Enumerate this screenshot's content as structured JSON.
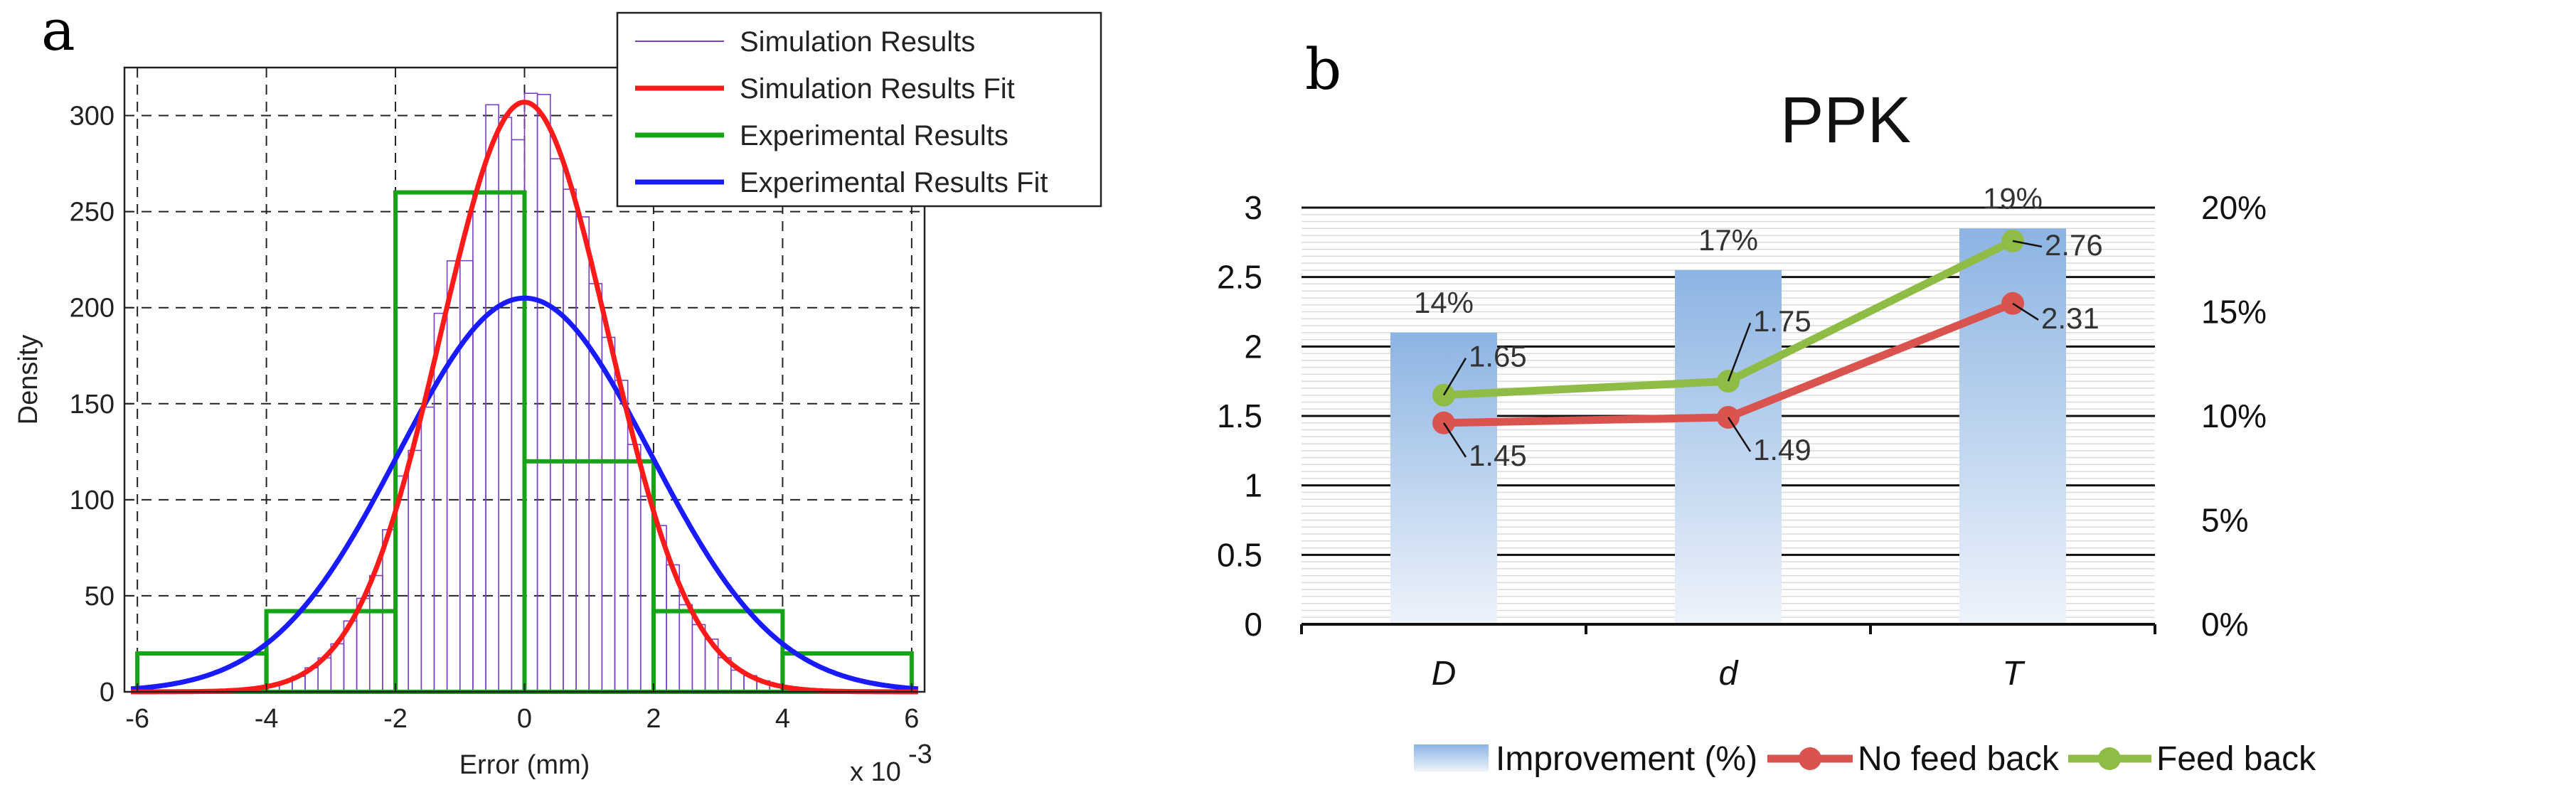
{
  "chart_data": [
    {
      "panel": "a",
      "type": "histogram",
      "xlabel": "Error (mm)",
      "ylabel": "Density",
      "x_multiplier": "x 10",
      "x_multiplier_exp": "-3",
      "xlim": [
        -6.2,
        6.2
      ],
      "ylim": [
        0,
        325
      ],
      "xticks": [
        -6,
        -4,
        -2,
        0,
        2,
        4,
        6
      ],
      "xtick_labels": [
        "-6",
        "-4",
        "-2",
        "0",
        "2",
        "4",
        "6"
      ],
      "yticks": [
        0,
        50,
        100,
        150,
        200,
        250,
        300
      ],
      "ytick_labels": [
        "0",
        "50",
        "100",
        "150",
        "200",
        "250",
        "300"
      ],
      "grid": "dashed",
      "legend": [
        "Simulation Results",
        "Simulation Results Fit",
        "Experimental Results",
        "Experimental Results Fit"
      ],
      "colors": {
        "sim": "#7b3fc4",
        "sim_fit": "#ff1a1a",
        "exp": "#17a317",
        "exp_fit": "#1a1aff"
      },
      "sim_fit": {
        "mean": 0.0,
        "sd": 1.3,
        "peak": 307
      },
      "exp_fit": {
        "mean": 0.0,
        "sd": 1.95,
        "peak": 205
      },
      "sim_hist": {
        "bin_width": 0.2,
        "range": [
          -4.2,
          4.2
        ]
      },
      "exp_hist": {
        "edges": [
          -6,
          -4,
          -2,
          0,
          2,
          4,
          6
        ],
        "values": [
          20,
          42,
          260,
          120,
          42,
          20
        ]
      }
    },
    {
      "panel": "b",
      "type": "bar+line",
      "title": "PPK",
      "categories": [
        "D",
        "d",
        "T"
      ],
      "left_ylim": [
        0,
        3
      ],
      "left_yticks": [
        "0",
        "0.5",
        "1",
        "1.5",
        "2",
        "2.5",
        "3"
      ],
      "right_ylim": [
        0,
        0.2
      ],
      "right_yticks": [
        "0%",
        "5%",
        "10%",
        "15%",
        "20%"
      ],
      "series": [
        {
          "name": "Improvement (%)",
          "type": "bar",
          "axis": "right",
          "values": [
            0.14,
            0.17,
            0.19
          ],
          "labels": [
            "14%",
            "17%",
            "19%"
          ],
          "color": "#8cb4e3"
        },
        {
          "name": "No feed back",
          "type": "line",
          "axis": "left",
          "values": [
            1.45,
            1.49,
            2.31
          ],
          "labels": [
            "1.45",
            "1.49",
            "2.31"
          ],
          "color": "#d9534f"
        },
        {
          "name": "Feed back",
          "type": "line",
          "axis": "left",
          "values": [
            1.65,
            1.75,
            2.76
          ],
          "labels": [
            "1.65",
            "1.75",
            "2.76"
          ],
          "color": "#8fbc45"
        }
      ],
      "legend_position": "bottom"
    }
  ]
}
